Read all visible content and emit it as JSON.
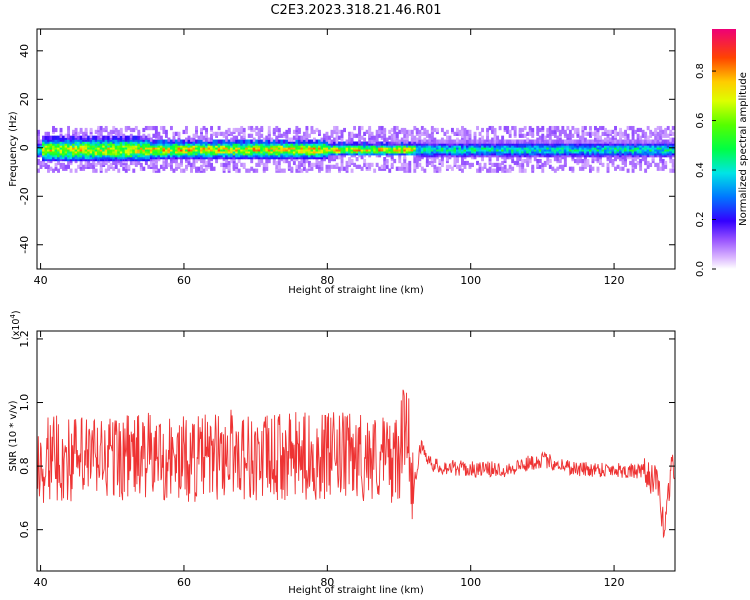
{
  "title": "C2E3.2023.318.21.46.R01",
  "chart_data": [
    {
      "type": "heatmap",
      "xlabel": "Height of straight line (km)",
      "ylabel": "Frequency (Hz)",
      "xlim": [
        39.5,
        128.5
      ],
      "ylim": [
        -50,
        49
      ],
      "x_ticks": [
        "40",
        "60",
        "80",
        "100",
        "120"
      ],
      "y_ticks": [
        "40",
        "20",
        "0",
        "-20",
        "-40"
      ],
      "x_tick_values": [
        40,
        60,
        80,
        100,
        120
      ],
      "y_tick_values": [
        40,
        20,
        0,
        -20,
        -40
      ],
      "colorbar": {
        "label": "Normalized spectral amplitude",
        "ticks": [
          "0.0",
          "0.2",
          "0.4",
          "0.6",
          "0.8"
        ],
        "tick_values": [
          0,
          0.2,
          0.4,
          0.6,
          0.8
        ],
        "range": [
          0,
          0.97
        ]
      },
      "ridge": {
        "center_frequency_hz": 0,
        "segments": [
          {
            "x": [
              40,
              55
            ],
            "halfwidth_hz": 4,
            "peak": 0.85
          },
          {
            "x": [
              55,
              80
            ],
            "halfwidth_hz": 3,
            "peak": 0.9
          },
          {
            "x": [
              80,
              92
            ],
            "halfwidth_hz": 2,
            "peak": 0.9
          },
          {
            "x": [
              92,
              128.5
            ],
            "halfwidth_hz": 2.5,
            "peak": 0.55
          }
        ]
      }
    },
    {
      "type": "line",
      "xlabel": "Height of straight line (km)",
      "ylabel": "SNR (10 * v/v)",
      "y_multiplier": "(x10",
      "y_multiplier_exp": "4",
      "y_multiplier_close": ")",
      "xlim": [
        39.5,
        128.5
      ],
      "ylim": [
        0.47,
        1.225
      ],
      "x_ticks": [
        "40",
        "60",
        "80",
        "100",
        "120"
      ],
      "y_ticks": [
        "0.6",
        "0.8",
        "1.0",
        "1.2"
      ],
      "x_tick_values": [
        40,
        60,
        80,
        100,
        120
      ],
      "y_tick_values": [
        0.6,
        0.8,
        1.0,
        1.2
      ],
      "color": "#ee3333",
      "series": [
        {
          "x": [
            40,
            45,
            50,
            55,
            60,
            65,
            66.5,
            70,
            75,
            80,
            85,
            90,
            91,
            92,
            93,
            95,
            100,
            105,
            110,
            115,
            120,
            124,
            126,
            127,
            128
          ],
          "y": [
            0.82,
            0.82,
            0.83,
            0.83,
            0.82,
            0.83,
            0.85,
            0.82,
            0.83,
            0.83,
            0.83,
            0.82,
            0.97,
            0.73,
            0.86,
            0.8,
            0.79,
            0.79,
            0.82,
            0.79,
            0.79,
            0.78,
            0.75,
            0.6,
            0.8
          ]
        }
      ]
    }
  ]
}
